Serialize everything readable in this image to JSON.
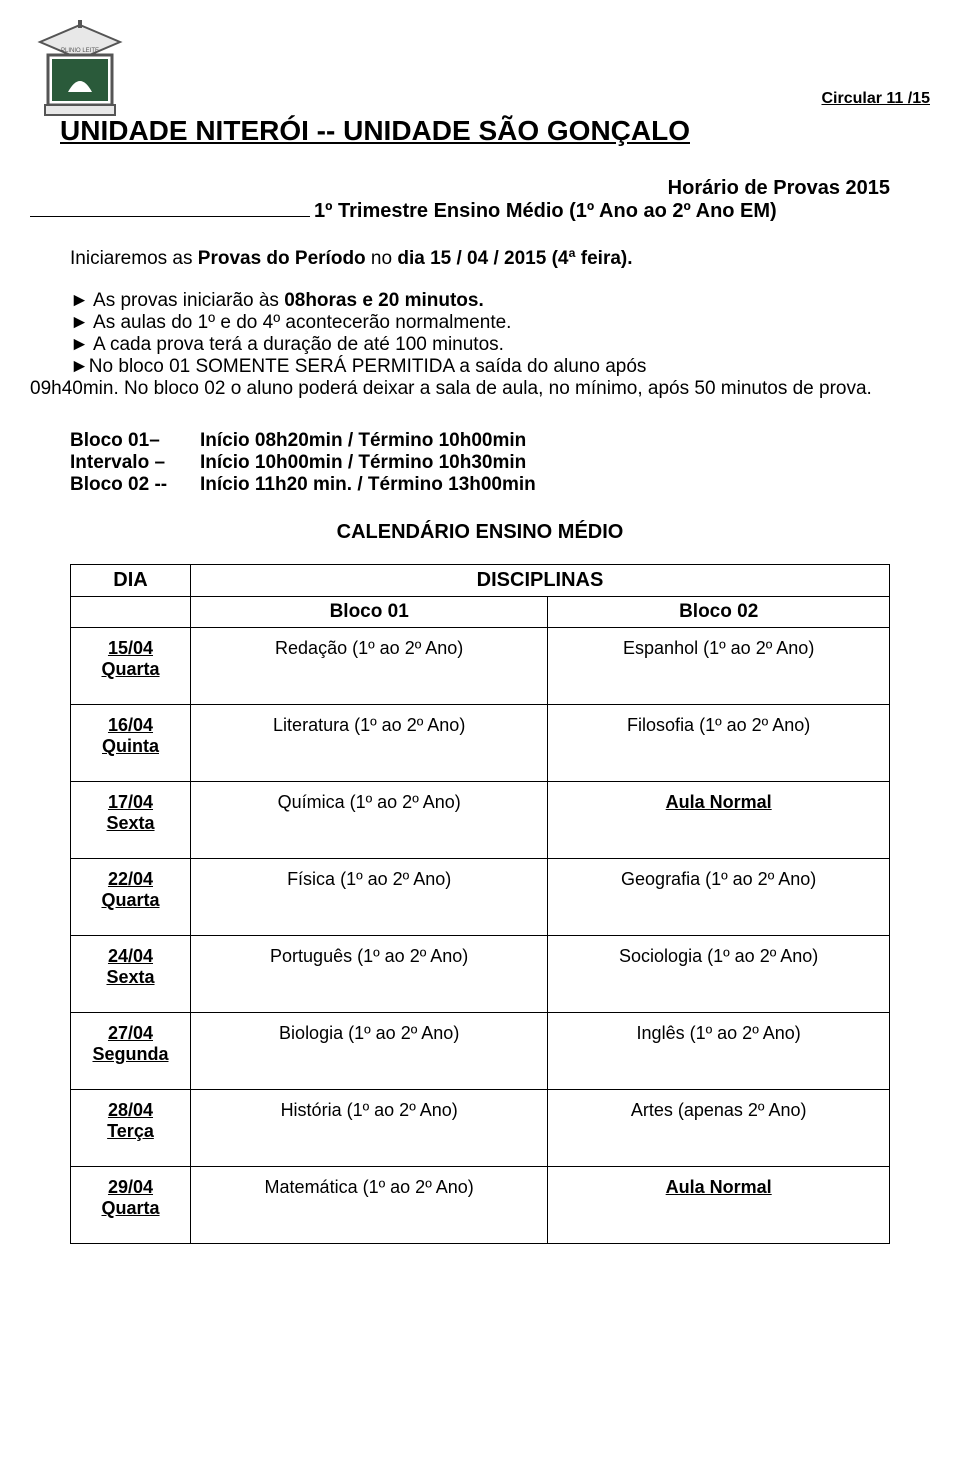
{
  "header": {
    "circular": "Circular 11 /15",
    "title": "UNIDADE NITERÓI -- UNIDADE SÃO GONÇALO"
  },
  "subtitle": {
    "line1": "Horário de Provas 2015",
    "line2": "1º Trimestre Ensino Médio (1º Ano ao 2º Ano EM)"
  },
  "intro": {
    "prefix": "Iniciaremos as ",
    "bold": "Provas do Período",
    "mid": " no ",
    "bold2": "dia 15 / 04 / 2015 (4ª feira)."
  },
  "bullets": {
    "b1_pre": "► As provas iniciarão às ",
    "b1_bold": "08horas e 20 minutos.",
    "b2": "► As aulas do 1º e do 4º acontecerão normalmente.",
    "b3": "► A cada prova terá a duração de até 100 minutos.",
    "b4_line1": "►No bloco 01 SOMENTE SERÁ PERMITIDA a saída do aluno após",
    "b4_line2": "09h40min. No bloco 02 o aluno poderá deixar a sala de aula, no mínimo, após 50 minutos de prova."
  },
  "blocks": {
    "r1_label": "Bloco 01–",
    "r1_val": "Início 08h20min / Término 10h00min",
    "r2_label": "Intervalo –",
    "r2_val": "Início 10h00min / Término 10h30min",
    "r3_label": "Bloco 02 --",
    "r3_val": "Início 11h20 min. / Término 13h00min"
  },
  "cal_title": "CALENDÁRIO ENSINO MÉDIO",
  "table": {
    "dia": "DIA",
    "disciplinas": "DISCIPLINAS",
    "bloco01": "Bloco 01",
    "bloco02": "Bloco 02",
    "rows": [
      {
        "date": "15/04",
        "dow": "Quarta",
        "b1": "Redação (1º ao 2º Ano)",
        "b2": "Espanhol (1º ao 2º Ano)",
        "b2_special": false
      },
      {
        "date": "16/04",
        "dow": "Quinta",
        "b1": "Literatura (1º ao 2º Ano)",
        "b2": "Filosofia (1º ao 2º Ano)",
        "b2_special": false
      },
      {
        "date": "17/04",
        "dow": "Sexta",
        "b1": "Química (1º ao 2º Ano)",
        "b2": "Aula Normal",
        "b2_special": true
      },
      {
        "date": "22/04",
        "dow": "Quarta",
        "b1": "Física (1º ao 2º Ano)",
        "b2": "Geografia (1º ao 2º Ano)",
        "b2_special": false
      },
      {
        "date": "24/04",
        "dow": "Sexta",
        "b1": "Português (1º ao 2º Ano)",
        "b2": "Sociologia (1º ao 2º Ano)",
        "b2_special": false
      },
      {
        "date": "27/04",
        "dow": "Segunda",
        "b1": "Biologia (1º ao 2º Ano)",
        "b2": "Inglês (1º ao 2º Ano)",
        "b2_special": false
      },
      {
        "date": "28/04",
        "dow": "Terça",
        "b1": "História (1º ao 2º Ano)",
        "b2": "Artes (apenas 2º Ano)",
        "b2_special": false
      },
      {
        "date": "29/04",
        "dow": "Quarta",
        "b1": "Matemática (1º ao 2º Ano)",
        "b2": "Aula Normal",
        "b2_special": true
      }
    ]
  }
}
